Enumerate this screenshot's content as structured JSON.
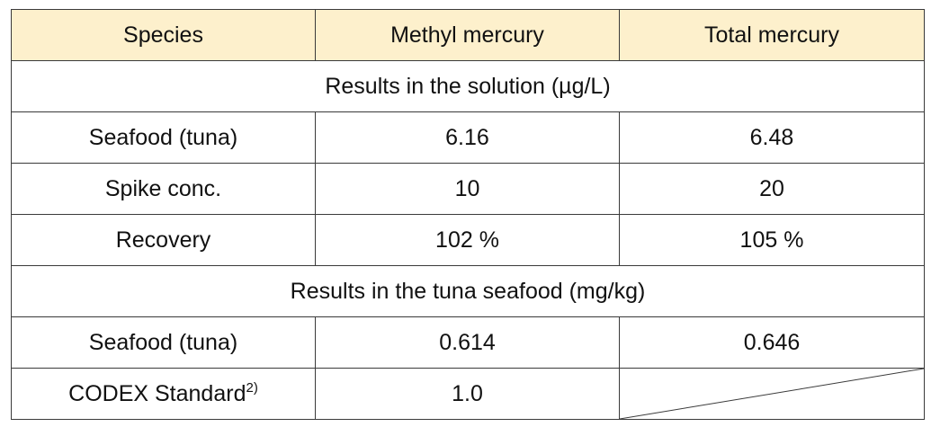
{
  "table": {
    "header": [
      "Species",
      "Methyl mercury",
      "Total mercury"
    ],
    "sections": [
      {
        "title": "Results in the solution (µg/L)",
        "rows": [
          {
            "label": "Seafood (tuna)",
            "cells": [
              "6.16",
              "6.48"
            ]
          },
          {
            "label": "Spike conc.",
            "cells": [
              "10",
              "20"
            ]
          },
          {
            "label": "Recovery",
            "cells": [
              "102 %",
              "105 %"
            ]
          }
        ]
      },
      {
        "title": "Results in the tuna seafood (mg/kg)",
        "rows": [
          {
            "label": "Seafood (tuna)",
            "cells": [
              "0.614",
              "0.646"
            ]
          },
          {
            "label": "CODEX Standard",
            "note": "2)",
            "cells": [
              "1.0"
            ]
          }
        ]
      }
    ]
  }
}
